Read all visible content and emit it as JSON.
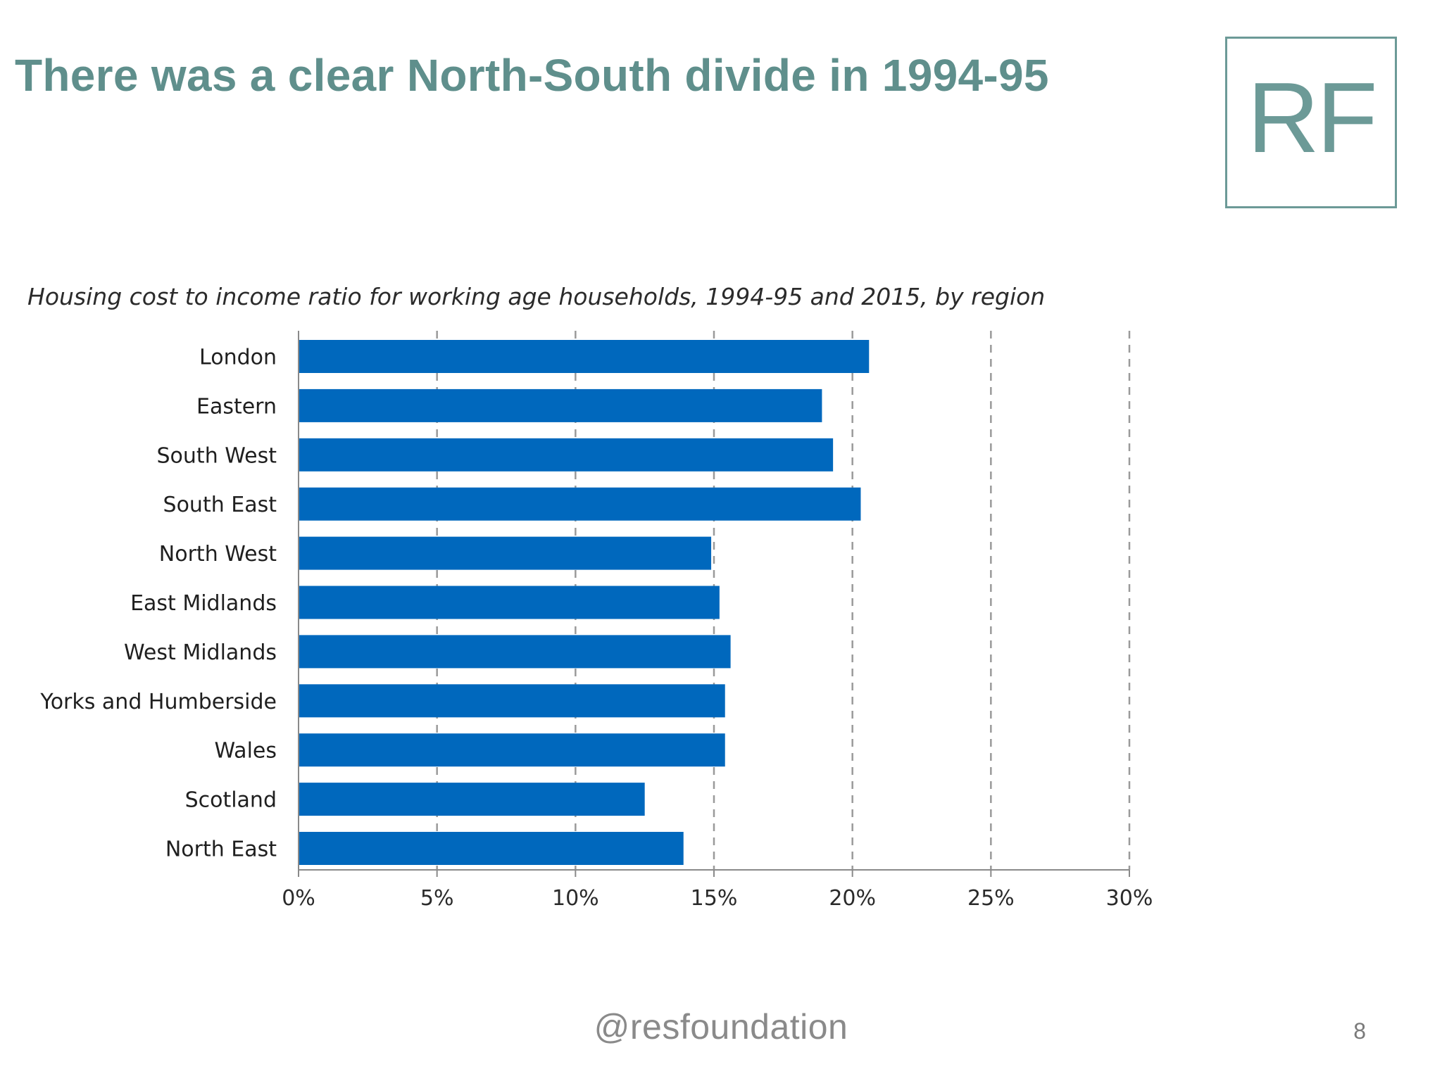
{
  "slide": {
    "headline": "There was a clear North-South divide in 1994-95",
    "logo_text": "RF",
    "footer_handle": "@resfoundation",
    "page_number": "8",
    "accent_color": "#5f8f8c"
  },
  "chart_data": {
    "type": "bar",
    "orientation": "horizontal",
    "title": "Housing cost to income ratio for working age households, 1994-95 and 2015, by region",
    "categories": [
      "London",
      "Eastern",
      "South West",
      "South East",
      "North West",
      "East Midlands",
      "West Midlands",
      "Yorks and Humberside",
      "Wales",
      "Scotland",
      "North East"
    ],
    "values": [
      20.6,
      18.9,
      19.3,
      20.3,
      14.9,
      15.2,
      15.6,
      15.4,
      15.4,
      12.5,
      13.9
    ],
    "xlim": [
      0,
      30
    ],
    "xticks": [
      0,
      5,
      10,
      15,
      20,
      25,
      30
    ],
    "xtick_labels": [
      "0%",
      "5%",
      "10%",
      "15%",
      "20%",
      "25%",
      "30%"
    ],
    "xlabel": "",
    "ylabel": "",
    "bar_color": "#0068bd",
    "grid": "vertical dashed",
    "legend": "none"
  }
}
